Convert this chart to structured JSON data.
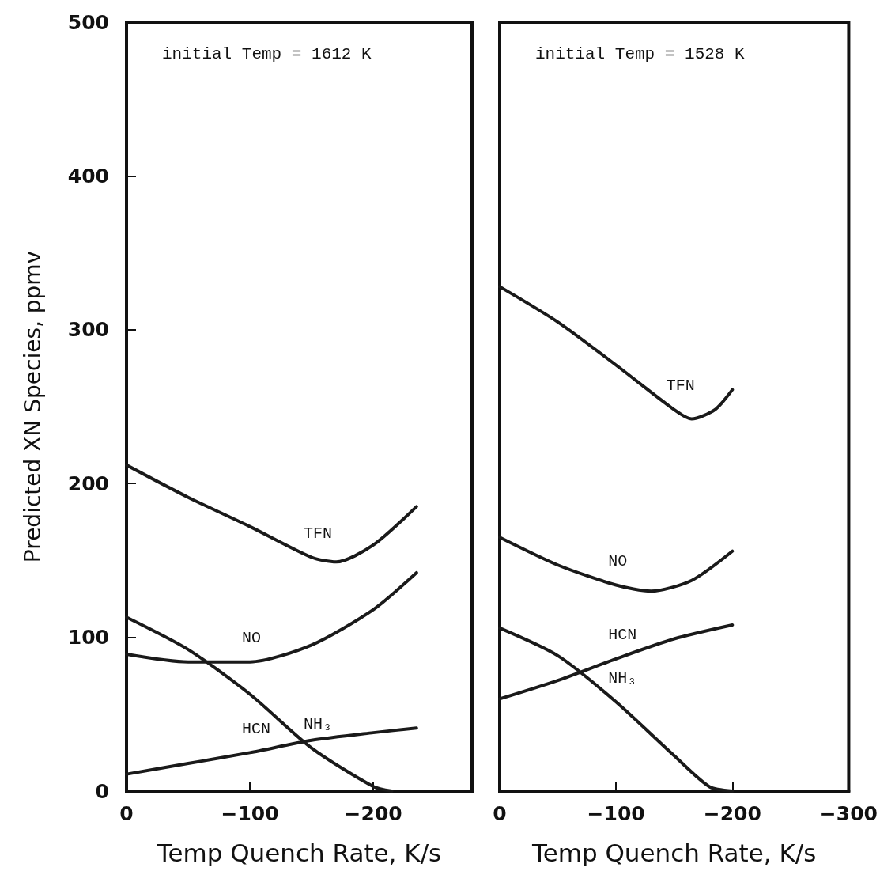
{
  "chart_data": [
    {
      "type": "line",
      "ylabel": "Predicted XN Species, ppmv",
      "xlabel": "Temp Quench Rate, K/s",
      "annotations": [
        "initial Temp = 1612 K"
      ],
      "xlim": [
        0,
        -280
      ],
      "xticks": [
        0,
        -100,
        -200
      ],
      "ylim": [
        0,
        500
      ],
      "yticks": [
        0,
        100,
        200,
        300,
        400,
        500
      ],
      "marker": "none",
      "line_style": "solid",
      "grid": false,
      "legend": false,
      "series": [
        {
          "name": "TFN",
          "color": "#1a1a1a",
          "x": [
            0,
            -50,
            -100,
            -150,
            -170,
            -200,
            -235
          ],
          "values": [
            212,
            191,
            172,
            152,
            149,
            160,
            185
          ]
        },
        {
          "name": "NO",
          "color": "#1a1a1a",
          "x": [
            0,
            -50,
            -100,
            -150,
            -200,
            -235
          ],
          "values": [
            89,
            84,
            84,
            95,
            118,
            142
          ]
        },
        {
          "name": "NH₃",
          "color": "#1a1a1a",
          "x": [
            0,
            -50,
            -100,
            -150,
            -200,
            -215
          ],
          "values": [
            113,
            92,
            63,
            28,
            3,
            0
          ]
        },
        {
          "name": "HCN",
          "color": "#1a1a1a",
          "x": [
            0,
            -50,
            -100,
            -150,
            -200,
            -235
          ],
          "values": [
            11,
            18,
            25,
            33,
            38,
            41
          ]
        }
      ]
    },
    {
      "type": "line",
      "xlabel": "Temp Quench Rate, K/s",
      "annotations": [
        "initial Temp = 1528 K"
      ],
      "xlim": [
        0,
        -300
      ],
      "xticks": [
        0,
        -100,
        -200,
        -300
      ],
      "ylim": [
        0,
        500
      ],
      "tick_labels": "x",
      "marker": "none",
      "line_style": "solid",
      "grid": false,
      "legend": false,
      "series": [
        {
          "name": "TFN",
          "color": "#1a1a1a",
          "x": [
            0,
            -50,
            -100,
            -150,
            -165,
            -185,
            -200
          ],
          "values": [
            328,
            305,
            277,
            248,
            242,
            248,
            261
          ]
        },
        {
          "name": "NO",
          "color": "#1a1a1a",
          "x": [
            0,
            -50,
            -100,
            -130,
            -165,
            -200
          ],
          "values": [
            165,
            147,
            134,
            130,
            137,
            156
          ]
        },
        {
          "name": "HCN",
          "color": "#1a1a1a",
          "x": [
            0,
            -50,
            -100,
            -150,
            -200
          ],
          "values": [
            60,
            72,
            86,
            99,
            108
          ]
        },
        {
          "name": "NH₃",
          "color": "#1a1a1a",
          "x": [
            0,
            -50,
            -100,
            -150,
            -180,
            -200
          ],
          "values": [
            106,
            88,
            58,
            23,
            3,
            0
          ]
        }
      ]
    }
  ]
}
